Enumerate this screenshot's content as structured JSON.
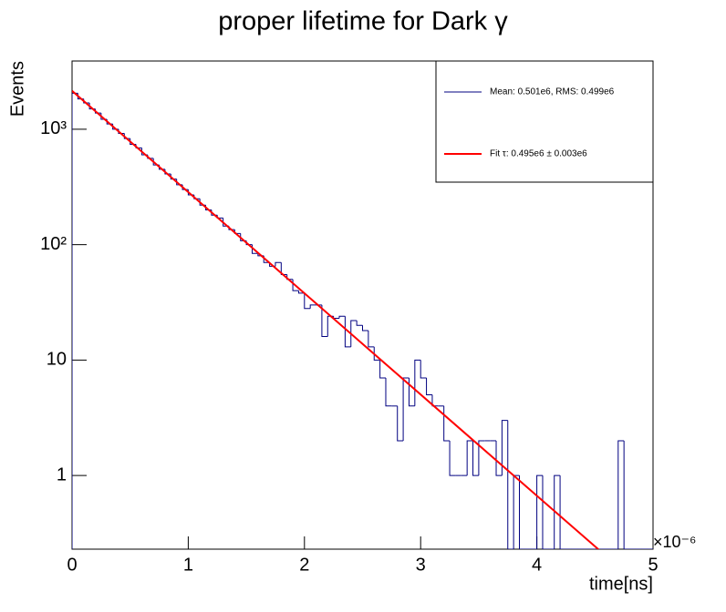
{
  "chart_data": {
    "type": "histogram",
    "title": "proper lifetime for Dark γ",
    "xlabel": "time[ns]",
    "x_exponent": "×10⁻⁶",
    "ylabel": "Events",
    "log_y": true,
    "xlim": [
      0,
      5
    ],
    "xticks": [
      0,
      1,
      2,
      3,
      4,
      5
    ],
    "ylim": [
      0.23,
      3900
    ],
    "yticks": [
      1,
      10,
      {
        "value": 100,
        "label": "10²"
      },
      {
        "value": 1000,
        "label": "10³"
      }
    ],
    "legend": "top-right",
    "bins": [
      0,
      0.05,
      0.1,
      0.15,
      0.2,
      0.25,
      0.3,
      0.35,
      0.4,
      0.45,
      0.5,
      0.55,
      0.6,
      0.65,
      0.7,
      0.75,
      0.8,
      0.85,
      0.9,
      0.95,
      1,
      1.05,
      1.1,
      1.15,
      1.2,
      1.25,
      1.3,
      1.35,
      1.4,
      1.45,
      1.5,
      1.55,
      1.6,
      1.65,
      1.7,
      1.75,
      1.8,
      1.85,
      1.9,
      1.95,
      2,
      2.05,
      2.1,
      2.15,
      2.2,
      2.25,
      2.3,
      2.35,
      2.4,
      2.45,
      2.5,
      2.55,
      2.6,
      2.65,
      2.7,
      2.75,
      2.8,
      2.85,
      2.9,
      2.95,
      3,
      3.05,
      3.1,
      3.15,
      3.2,
      3.25,
      3.3,
      3.35,
      3.4,
      3.45,
      3.5,
      3.55,
      3.6,
      3.65,
      3.7,
      3.75,
      3.8,
      3.85,
      3.9,
      3.95,
      4,
      4.05,
      4.1,
      4.15,
      4.2,
      4.25,
      4.3,
      4.35,
      4.4,
      4.45,
      4.5,
      4.55,
      4.6,
      4.65,
      4.7,
      4.75,
      4.8,
      4.85,
      4.9,
      4.95,
      5
    ],
    "series": [
      {
        "name": "Mean: 0.501e6, RMS: 0.499e6",
        "color": "#000080",
        "values": [
          2050,
          1830,
          1690,
          1500,
          1380,
          1220,
          1110,
          1000,
          920,
          830,
          740,
          690,
          600,
          560,
          490,
          450,
          410,
          370,
          330,
          300,
          270,
          250,
          220,
          200,
          180,
          170,
          145,
          135,
          125,
          108,
          100,
          84,
          80,
          70,
          65,
          70,
          55,
          50,
          40,
          38,
          28,
          30,
          30,
          16,
          24,
          23,
          24,
          13,
          22,
          20,
          18,
          13,
          10,
          7,
          4,
          4,
          2,
          7,
          4,
          10,
          7,
          5,
          4,
          4,
          2,
          1,
          1,
          1,
          2,
          1,
          2,
          2,
          2,
          1,
          3,
          0,
          1,
          0,
          0,
          0,
          1,
          0,
          0,
          1,
          0,
          0,
          0,
          0,
          0,
          0,
          0,
          0,
          0,
          0,
          2,
          0,
          0,
          0,
          0,
          0
        ]
      },
      {
        "name": "Fit τ: 0.495e6 ± 0.003e6",
        "color": "#ff0000",
        "x": [
          0,
          4.55
        ],
        "values": [
          2150,
          0.22
        ]
      }
    ]
  }
}
